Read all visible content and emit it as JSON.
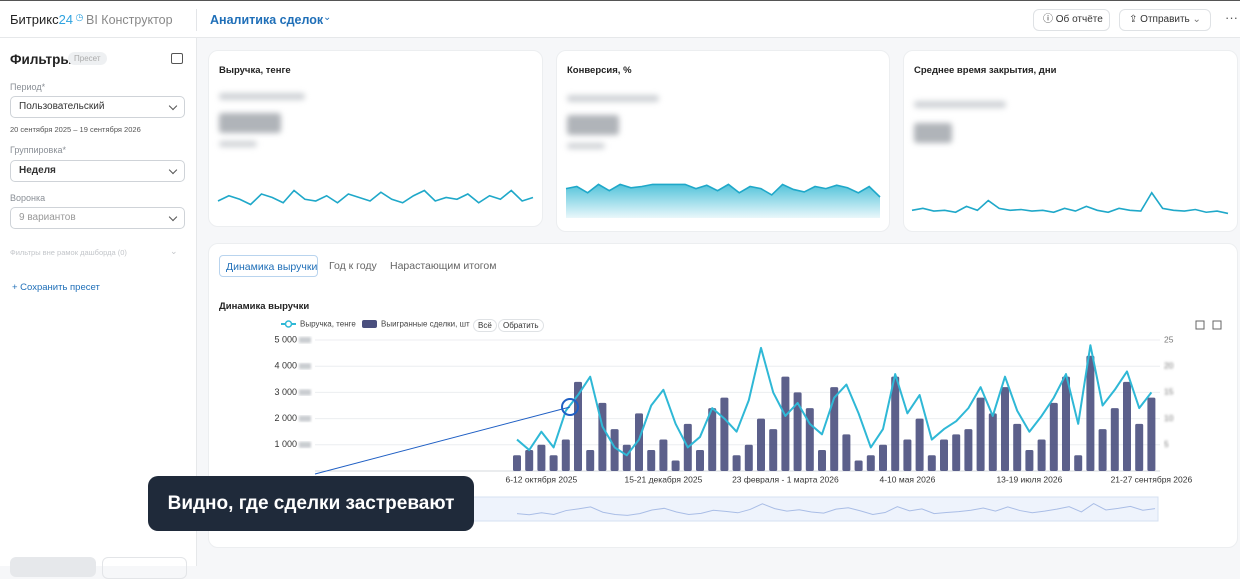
{
  "header": {
    "brand": "Битрикс",
    "brand_suffix": "24",
    "product": "BI Конструктор",
    "dashboard": "Аналитика сделок",
    "about_button": "Об отчёте",
    "send_button": "Отправить"
  },
  "filters": {
    "title": "Фильтры",
    "preset_badge": "Пресет",
    "period_label": "Период*",
    "period_value": "Пользовательский",
    "period_range": "20 сентября 2025 – 19 сентября 2026",
    "grouping_label": "Группировка*",
    "grouping_value": "Неделя",
    "funnel_label": "Воронка",
    "funnel_value": "9 вариантов",
    "external_filters": "Фильтры вне рамок дашборда (0)",
    "save_preset": "+ Сохранить пресет"
  },
  "kpis": [
    {
      "title": "Выручка, тенге",
      "sparkline": [
        40,
        55,
        45,
        30,
        60,
        50,
        35,
        70,
        45,
        40,
        55,
        35,
        60,
        50,
        40,
        65,
        45,
        35,
        55,
        70,
        40,
        50,
        45,
        60,
        35,
        55,
        45,
        70,
        40,
        50
      ]
    },
    {
      "title": "Конверсия, %",
      "sparkline": [
        70,
        75,
        60,
        80,
        65,
        80,
        72,
        75,
        80,
        80,
        80,
        80,
        70,
        78,
        65,
        80,
        60,
        75,
        70,
        55,
        80,
        68,
        62,
        75,
        70,
        78,
        72,
        60,
        75,
        50
      ]
    },
    {
      "title": "Среднее время закрытия, дни",
      "sparkline": [
        30,
        35,
        28,
        30,
        25,
        40,
        30,
        55,
        35,
        30,
        32,
        28,
        30,
        25,
        35,
        28,
        40,
        30,
        25,
        35,
        30,
        28,
        75,
        35,
        30,
        28,
        32,
        25,
        28,
        22
      ]
    }
  ],
  "tabs": [
    "Динамика выручки",
    "Год к году",
    "Нарастающим итогом"
  ],
  "chart_data": {
    "type": "combo",
    "title": "Динамика выручки",
    "categories": [
      null,
      null,
      "6-12 октября 2025",
      null,
      null,
      null,
      null,
      null,
      null,
      null,
      null,
      null,
      "15-21 декабря 2025",
      null,
      null,
      null,
      null,
      null,
      null,
      null,
      null,
      null,
      "23 февраля - 1 марта 2026",
      null,
      null,
      null,
      null,
      null,
      null,
      null,
      null,
      null,
      "4-10 мая 2026",
      null,
      null,
      null,
      null,
      null,
      null,
      null,
      null,
      null,
      "13-19 июля 2026",
      null,
      null,
      null,
      null,
      null,
      null,
      null,
      null,
      null,
      "21-27 сентября 2026"
    ],
    "series": [
      {
        "name": "Выручка, тенге",
        "kind": "line",
        "color": "#2fb8d6",
        "values": [
          1200,
          800,
          1500,
          900,
          2300,
          2900,
          3600,
          1700,
          900,
          600,
          1200,
          2500,
          3100,
          1800,
          900,
          1300,
          2400,
          2000,
          1500,
          2700,
          4700,
          3000,
          2100,
          2600,
          1800,
          1400,
          2800,
          3300,
          2200,
          900,
          1600,
          3700,
          2200,
          2900,
          1200,
          1600,
          1900,
          2400,
          3200,
          2100,
          3600,
          2300,
          1500,
          2100,
          2800,
          3700,
          1800,
          4800,
          2500,
          3100,
          3800,
          2400,
          3000
        ]
      },
      {
        "name": "Выигранные сделки, шт",
        "kind": "bar",
        "axis": "y2",
        "color": "#4a4f7e",
        "values": [
          3,
          4,
          5,
          3,
          6,
          17,
          4,
          13,
          8,
          5,
          11,
          4,
          6,
          2,
          9,
          4,
          12,
          14,
          3,
          5,
          10,
          8,
          18,
          15,
          12,
          4,
          16,
          7,
          2,
          3,
          5,
          18,
          6,
          10,
          3,
          6,
          7,
          8,
          14,
          11,
          16,
          9,
          4,
          6,
          13,
          18,
          3,
          22,
          8,
          12,
          17,
          9,
          14
        ]
      }
    ],
    "ylim": [
      0,
      5000
    ],
    "yticks": [
      {
        "value": 1000,
        "label": "1 000"
      },
      {
        "value": 2000,
        "label": "2 000"
      },
      {
        "value": 3000,
        "label": "3 000"
      },
      {
        "value": 4000,
        "label": "4 000"
      },
      {
        "value": 5000,
        "label": "5 000"
      }
    ],
    "y2lim": [
      0,
      25
    ],
    "y2ticks": [
      5,
      10,
      15,
      20,
      25
    ],
    "grid": true,
    "legend_buttons": [
      "Всё",
      "Обратить"
    ]
  },
  "callout": "Видно, где сделки застревают"
}
